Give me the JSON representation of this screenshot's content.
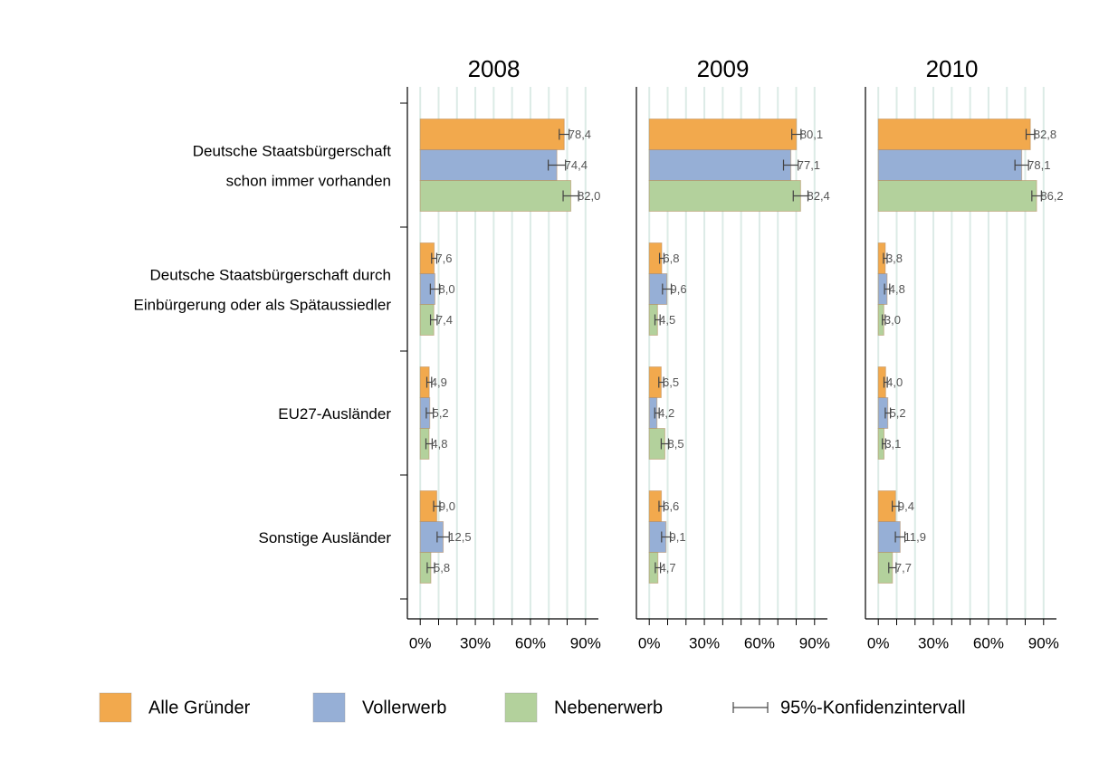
{
  "chart_data": [
    {
      "type": "bar",
      "orientation": "horizontal",
      "title": "2008",
      "categories": [
        [
          "Deutsche Staatsbürgerschaft",
          "schon immer vorhanden"
        ],
        [
          "Deutsche Staatsbürgerschaft durch",
          "Einbürgerung oder als Spätaussiedler"
        ],
        [
          "EU27-Ausländer"
        ],
        [
          "Sonstige Ausländer"
        ]
      ],
      "series": [
        {
          "name": "Alle Gründer",
          "color": "#f2a94d",
          "values": [
            78.4,
            7.6,
            4.9,
            9.0
          ],
          "value_labels": [
            "78,4",
            "7,6",
            "4,9",
            "9,0"
          ],
          "errors": [
            2.7,
            1.4,
            1.3,
            1.7
          ]
        },
        {
          "name": "Vollerwerb",
          "color": "#96afd6",
          "values": [
            74.4,
            8.0,
            5.2,
            12.5
          ],
          "value_labels": [
            "74,4",
            "8,0",
            "5,2",
            "12,5"
          ],
          "errors": [
            4.7,
            2.5,
            1.9,
            3.3
          ]
        },
        {
          "name": "Nebenerwerb",
          "color": "#b3d19c",
          "values": [
            82.0,
            7.4,
            4.8,
            5.8
          ],
          "value_labels": [
            "82,0",
            "7,4",
            "4,8",
            "5,8"
          ],
          "errors": [
            4.2,
            1.8,
            1.7,
            2.0
          ]
        }
      ],
      "error_legend": "95%-Konfidenzintervall",
      "xlim": [
        -7,
        97
      ],
      "xticks": [
        {
          "value": 0,
          "label": "0%"
        },
        {
          "value": 30,
          "label": "30%"
        },
        {
          "value": 60,
          "label": "60%"
        },
        {
          "value": 90,
          "label": "90%"
        }
      ],
      "minor_xticks": [
        10,
        20,
        40,
        50,
        70,
        80
      ],
      "grid": true
    },
    {
      "type": "bar",
      "orientation": "horizontal",
      "title": "2009",
      "series": [
        {
          "color": "#f2a94d",
          "values": [
            80.1,
            6.8,
            6.5,
            6.6
          ],
          "value_labels": [
            "80,1",
            "6,8",
            "6,5",
            "6,6"
          ],
          "errors": [
            2.5,
            1.2,
            1.3,
            1.3
          ]
        },
        {
          "color": "#96afd6",
          "values": [
            77.1,
            9.6,
            4.2,
            9.1
          ],
          "value_labels": [
            "77,1",
            "9,6",
            "4,2",
            "9,1"
          ],
          "errors": [
            4.0,
            2.4,
            1.2,
            2.4
          ]
        },
        {
          "color": "#b3d19c",
          "values": [
            82.4,
            4.5,
            8.5,
            4.7
          ],
          "value_labels": [
            "82,4",
            "4,5",
            "8,5",
            "4,7"
          ],
          "errors": [
            4.0,
            1.4,
            2.0,
            1.4
          ]
        }
      ],
      "xlim": [
        -7,
        97
      ],
      "xticks": [
        {
          "value": 0,
          "label": "0%"
        },
        {
          "value": 30,
          "label": "30%"
        },
        {
          "value": 60,
          "label": "60%"
        },
        {
          "value": 90,
          "label": "90%"
        }
      ],
      "minor_xticks": [
        10,
        20,
        40,
        50,
        70,
        80
      ],
      "grid": true
    },
    {
      "type": "bar",
      "orientation": "horizontal",
      "title": "2010",
      "series": [
        {
          "color": "#f2a94d",
          "values": [
            82.8,
            3.8,
            4.0,
            9.4
          ],
          "value_labels": [
            "82,8",
            "3,8",
            "4,0",
            "9,4"
          ],
          "errors": [
            2.3,
            1.0,
            0.9,
            1.8
          ]
        },
        {
          "color": "#96afd6",
          "values": [
            78.1,
            4.8,
            5.2,
            11.9
          ],
          "value_labels": [
            "78,1",
            "4,8",
            "5,2",
            "11,9"
          ],
          "errors": [
            3.7,
            1.4,
            1.4,
            2.6
          ]
        },
        {
          "color": "#b3d19c",
          "values": [
            86.2,
            3.0,
            3.1,
            7.7
          ],
          "value_labels": [
            "86,2",
            "3,0",
            "3,1",
            "7,7"
          ],
          "errors": [
            2.6,
            0.8,
            0.9,
            2.0
          ]
        }
      ],
      "xlim": [
        -7,
        97
      ],
      "xticks": [
        {
          "value": 0,
          "label": "0%"
        },
        {
          "value": 30,
          "label": "30%"
        },
        {
          "value": 60,
          "label": "60%"
        },
        {
          "value": 90,
          "label": "90%"
        }
      ],
      "minor_xticks": [
        10,
        20,
        40,
        50,
        70,
        80
      ],
      "grid": true
    }
  ]
}
